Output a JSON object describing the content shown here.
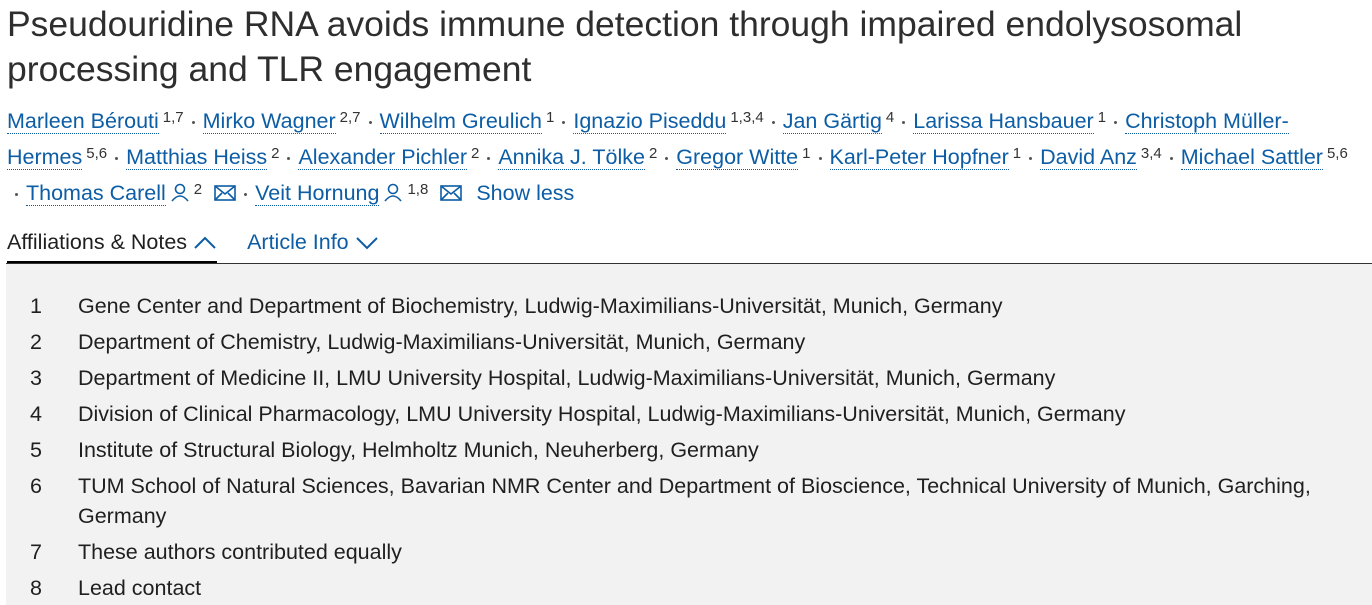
{
  "title": "Pseudouridine RNA avoids immune detection through impaired endolysosomal processing and TLR engagement",
  "authors": [
    {
      "name": "Marleen Bérouti",
      "sup": "1,7"
    },
    {
      "name": "Mirko Wagner",
      "sup": "2,7"
    },
    {
      "name": "Wilhelm Greulich",
      "sup": "1"
    },
    {
      "name": "Ignazio Piseddu",
      "sup": "1,3,4"
    },
    {
      "name": "Jan Gärtig",
      "sup": "4"
    },
    {
      "name": "Larissa Hansbauer",
      "sup": "1"
    },
    {
      "name": "Christoph Müller-Hermes",
      "sup": "5,6"
    },
    {
      "name": "Matthias Heiss",
      "sup": "2"
    },
    {
      "name": "Alexander Pichler",
      "sup": "2"
    },
    {
      "name": "Annika J. Tölke",
      "sup": "2"
    },
    {
      "name": "Gregor Witte",
      "sup": "1"
    },
    {
      "name": "Karl-Peter Hopfner",
      "sup": "1"
    },
    {
      "name": "David Anz",
      "sup": "3,4"
    },
    {
      "name": "Michael Sattler",
      "sup": "5,6"
    },
    {
      "name": "Thomas Carell",
      "sup": "2",
      "corresponding": true
    },
    {
      "name": "Veit Hornung",
      "sup": "1,8",
      "corresponding": true
    }
  ],
  "show_less": "Show less",
  "tabs": [
    "Affiliations & Notes",
    "Article Info"
  ],
  "affiliations": [
    {
      "number": 1,
      "text": "Gene Center and Department of Biochemistry, Ludwig-Maximilians-Universität, Munich, Germany"
    },
    {
      "number": 2,
      "text": "Department of Chemistry, Ludwig-Maximilians-Universität, Munich, Germany"
    },
    {
      "number": 3,
      "text": "Department of Medicine II, LMU University Hospital, Ludwig-Maximilians-Universität, Munich, Germany"
    },
    {
      "number": 4,
      "text": "Division of Clinical Pharmacology, LMU University Hospital, Ludwig-Maximilians-Universität, Munich, Germany"
    },
    {
      "number": 5,
      "text": "Institute of Structural Biology, Helmholtz Munich, Neuherberg, Germany"
    },
    {
      "number": 6,
      "text": "TUM School of Natural Sciences, Bavarian NMR Center and Department of Bioscience, Technical University of Munich, Garching, Germany"
    },
    {
      "number": 7,
      "text": "These authors contributed equally"
    },
    {
      "number": 8,
      "text": "Lead contact"
    }
  ]
}
